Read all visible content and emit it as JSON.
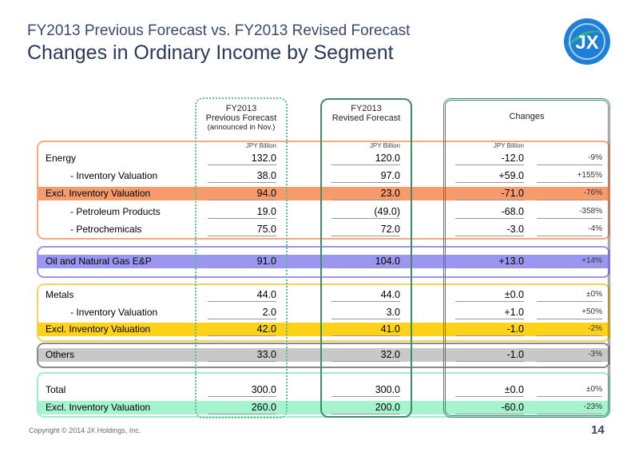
{
  "header": {
    "title_line1": "FY2013 Previous Forecast vs. FY2013 Revised Forecast",
    "title_line2": "Changes in Ordinary Income by Segment"
  },
  "logo": {
    "text": "JX",
    "colors": {
      "blue": "#1e7fd6",
      "green": "#36b37e"
    }
  },
  "columns": {
    "prev": {
      "line1": "FY2013",
      "line2": "Previous Forecast",
      "line3": "(announced in Nov.)",
      "unit": "JPY Billion"
    },
    "rev": {
      "line1": "FY2013",
      "line2": "Revised Forecast",
      "unit": "JPY Billion"
    },
    "chg": {
      "line1": "Changes",
      "unit": "JPY Billion"
    }
  },
  "rows": [
    {
      "label": "Energy",
      "prev": "132.0",
      "rev": "120.0",
      "chg": "-12.0",
      "pct": "-9%"
    },
    {
      "label": "- Inventory Valuation",
      "prev": "38.0",
      "rev": "97.0",
      "chg": "+59.0",
      "pct": "+155%"
    },
    {
      "label": "Excl. Inventory Valuation",
      "prev": "94.0",
      "rev": "23.0",
      "chg": "-71.0",
      "pct": "-76%"
    },
    {
      "label": "- Petroleum Products",
      "prev": "19.0",
      "rev": "(49.0)",
      "chg": "-68.0",
      "pct": "-358%"
    },
    {
      "label": "- Petrochemicals",
      "prev": "75.0",
      "rev": "72.0",
      "chg": "-3.0",
      "pct": "-4%"
    },
    {
      "label": "Oil and Natural Gas E&P",
      "prev": "91.0",
      "rev": "104.0",
      "chg": "+13.0",
      "pct": "+14%"
    },
    {
      "label": "Metals",
      "prev": "44.0",
      "rev": "44.0",
      "chg": "±0.0",
      "pct": "±0%"
    },
    {
      "label": "- Inventory Valuation",
      "prev": "2.0",
      "rev": "3.0",
      "chg": "+1.0",
      "pct": "+50%"
    },
    {
      "label": "Excl. Inventory Valuation",
      "prev": "42.0",
      "rev": "41.0",
      "chg": "-1.0",
      "pct": "-2%"
    },
    {
      "label": "Others",
      "prev": "33.0",
      "rev": "32.0",
      "chg": "-1.0",
      "pct": "-3%"
    },
    {
      "label": "Total",
      "prev": "300.0",
      "rev": "300.0",
      "chg": "±0.0",
      "pct": "±0%"
    },
    {
      "label": "Excl. Inventory Valuation",
      "prev": "260.0",
      "rev": "200.0",
      "chg": "-60.0",
      "pct": "-23%"
    }
  ],
  "colors": {
    "energy_band": "#f79a6c",
    "oil_band": "#9b97f0",
    "metals_band": "#ffd21a",
    "others_band": "#c8c8c8",
    "total_band": "#a6f3cf"
  },
  "footer": {
    "copyright": "Copyright © 2014 JX Holdings, Inc.",
    "page": "14"
  }
}
